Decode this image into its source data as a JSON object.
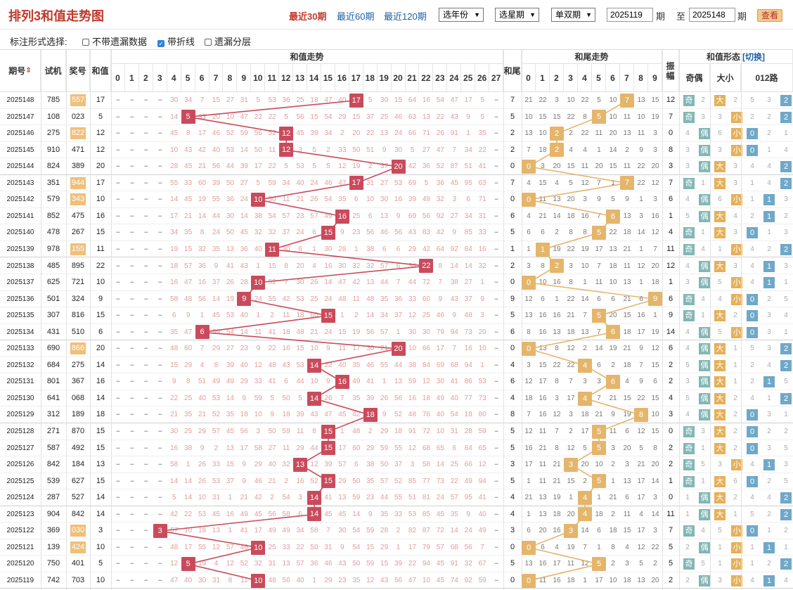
{
  "title": "排列3和值走势图",
  "links": [
    "最近30期",
    "最近60期",
    "最近120期"
  ],
  "selects": [
    "选年份",
    "选星期",
    "单双期"
  ],
  "range": {
    "from": "2025119",
    "period1": "期",
    "to_label": "至",
    "to": "2025148",
    "period2": "期",
    "query": "查看"
  },
  "options": {
    "label": "标注形式选择:",
    "items": [
      {
        "label": "不带遗漏数据",
        "checked": false
      },
      {
        "label": "带折线",
        "checked": true
      },
      {
        "label": "遗漏分层",
        "checked": false
      }
    ]
  },
  "headers": {
    "issue": "期号",
    "trial": "试机",
    "draw": "奖号",
    "sum": "和值",
    "sum_trend": "和值走势",
    "tail": "和尾",
    "tail_trend": "和尾走势",
    "amp": "振幅",
    "shape": "和值形态",
    "switch": "[切换]",
    "parity": "奇偶",
    "size": "大小",
    "route": "012路"
  },
  "sum_digits": [
    "0",
    "1",
    "2",
    "3",
    "4",
    "5",
    "6",
    "7",
    "8",
    "9",
    "10",
    "11",
    "12",
    "13",
    "14",
    "15",
    "16",
    "17",
    "18",
    "19",
    "20",
    "21",
    "22",
    "23",
    "24",
    "25",
    "26",
    "27"
  ],
  "tail_digits": [
    "0",
    "1",
    "2",
    "3",
    "4",
    "5",
    "6",
    "7",
    "8",
    "9"
  ],
  "colors": {
    "red": "#c94b5b",
    "orange": "#e4b56b",
    "sel_bg": "#f0bf7a"
  },
  "rows": [
    {
      "issue": "2025148",
      "trial": "785",
      "draw": "557",
      "dup": true,
      "sum": 17,
      "tail": 7,
      "amp": 12,
      "parity": "奇",
      "size": "大",
      "route": "2"
    },
    {
      "issue": "2025147",
      "trial": "108",
      "draw": "023",
      "dup": false,
      "sum": 5,
      "tail": 5,
      "amp": 7,
      "parity": "奇",
      "size": "小",
      "route": "2"
    },
    {
      "issue": "2025146",
      "trial": "275",
      "draw": "822",
      "dup": true,
      "sum": 12,
      "tail": 2,
      "amp": 0,
      "parity": "偶",
      "size": "小",
      "route": "0"
    },
    {
      "issue": "2025145",
      "trial": "910",
      "draw": "471",
      "dup": false,
      "sum": 12,
      "tail": 2,
      "amp": 8,
      "parity": "偶",
      "size": "小",
      "route": "0"
    },
    {
      "issue": "2025144",
      "trial": "824",
      "draw": "389",
      "dup": false,
      "sum": 20,
      "tail": 0,
      "amp": 3,
      "parity": "偶",
      "size": "大",
      "route": "2"
    },
    {
      "issue": "2025143",
      "trial": "351",
      "draw": "944",
      "dup": true,
      "sum": 17,
      "tail": 7,
      "amp": 7,
      "parity": "奇",
      "size": "大",
      "route": "2"
    },
    {
      "issue": "2025142",
      "trial": "579",
      "draw": "343",
      "dup": true,
      "sum": 10,
      "tail": 0,
      "amp": 6,
      "parity": "偶",
      "size": "小",
      "route": "1"
    },
    {
      "issue": "2025141",
      "trial": "852",
      "draw": "475",
      "dup": false,
      "sum": 16,
      "tail": 6,
      "amp": 1,
      "parity": "偶",
      "size": "大",
      "route": "1"
    },
    {
      "issue": "2025140",
      "trial": "478",
      "draw": "267",
      "dup": false,
      "sum": 15,
      "tail": 5,
      "amp": 4,
      "parity": "奇",
      "size": "大",
      "route": "0"
    },
    {
      "issue": "2025139",
      "trial": "978",
      "draw": "155",
      "dup": true,
      "sum": 11,
      "tail": 1,
      "amp": 11,
      "parity": "奇",
      "size": "小",
      "route": "2"
    },
    {
      "issue": "2025138",
      "trial": "485",
      "draw": "895",
      "dup": false,
      "sum": 22,
      "tail": 2,
      "amp": 12,
      "parity": "偶",
      "size": "大",
      "route": "1"
    },
    {
      "issue": "2025137",
      "trial": "625",
      "draw": "721",
      "dup": false,
      "sum": 10,
      "tail": 0,
      "amp": 1,
      "parity": "偶",
      "size": "小",
      "route": "1"
    },
    {
      "issue": "2025136",
      "trial": "501",
      "draw": "324",
      "dup": false,
      "sum": 9,
      "tail": 9,
      "amp": 6,
      "parity": "奇",
      "size": "小",
      "route": "0"
    },
    {
      "issue": "2025135",
      "trial": "307",
      "draw": "816",
      "dup": false,
      "sum": 15,
      "tail": 5,
      "amp": 9,
      "parity": "奇",
      "size": "大",
      "route": "0"
    },
    {
      "issue": "2025134",
      "trial": "431",
      "draw": "510",
      "dup": false,
      "sum": 6,
      "tail": 6,
      "amp": 14,
      "parity": "偶",
      "size": "小",
      "route": "0"
    },
    {
      "issue": "2025133",
      "trial": "690",
      "draw": "866",
      "dup": true,
      "sum": 20,
      "tail": 0,
      "amp": 6,
      "parity": "偶",
      "size": "大",
      "route": "2"
    },
    {
      "issue": "2025132",
      "trial": "684",
      "draw": "275",
      "dup": false,
      "sum": 14,
      "tail": 4,
      "amp": 2,
      "parity": "偶",
      "size": "大",
      "route": "2"
    },
    {
      "issue": "2025131",
      "trial": "801",
      "draw": "367",
      "dup": false,
      "sum": 16,
      "tail": 6,
      "amp": 2,
      "parity": "偶",
      "size": "大",
      "route": "1"
    },
    {
      "issue": "2025130",
      "trial": "641",
      "draw": "068",
      "dup": false,
      "sum": 14,
      "tail": 4,
      "amp": 4,
      "parity": "偶",
      "size": "大",
      "route": "2"
    },
    {
      "issue": "2025129",
      "trial": "312",
      "draw": "189",
      "dup": false,
      "sum": 18,
      "tail": 8,
      "amp": 3,
      "parity": "偶",
      "size": "大",
      "route": "0"
    },
    {
      "issue": "2025128",
      "trial": "271",
      "draw": "870",
      "dup": false,
      "sum": 15,
      "tail": 5,
      "amp": 0,
      "parity": "奇",
      "size": "大",
      "route": "0"
    },
    {
      "issue": "2025127",
      "trial": "587",
      "draw": "492",
      "dup": false,
      "sum": 15,
      "tail": 5,
      "amp": 2,
      "parity": "奇",
      "size": "大",
      "route": "0"
    },
    {
      "issue": "2025126",
      "trial": "842",
      "draw": "184",
      "dup": false,
      "sum": 13,
      "tail": 3,
      "amp": 2,
      "parity": "奇",
      "size": "小",
      "route": "1"
    },
    {
      "issue": "2025125",
      "trial": "539",
      "draw": "627",
      "dup": false,
      "sum": 15,
      "tail": 5,
      "amp": 1,
      "parity": "奇",
      "size": "大",
      "route": "0"
    },
    {
      "issue": "2025124",
      "trial": "287",
      "draw": "527",
      "dup": false,
      "sum": 14,
      "tail": 4,
      "amp": 0,
      "parity": "偶",
      "size": "大",
      "route": "2"
    },
    {
      "issue": "2025123",
      "trial": "904",
      "draw": "842",
      "dup": false,
      "sum": 14,
      "tail": 4,
      "amp": 11,
      "parity": "偶",
      "size": "大",
      "route": "2"
    },
    {
      "issue": "2025122",
      "trial": "369",
      "draw": "030",
      "dup": true,
      "sum": 3,
      "tail": 3,
      "amp": 7,
      "parity": "奇",
      "size": "小",
      "route": "0"
    },
    {
      "issue": "2025121",
      "trial": "139",
      "draw": "424",
      "dup": true,
      "sum": 10,
      "tail": 0,
      "amp": 5,
      "parity": "偶",
      "size": "小",
      "route": "1"
    },
    {
      "issue": "2025120",
      "trial": "750",
      "draw": "401",
      "dup": false,
      "sum": 5,
      "tail": 5,
      "amp": 5,
      "parity": "奇",
      "size": "小",
      "route": "2"
    },
    {
      "issue": "2025119",
      "trial": "742",
      "draw": "703",
      "dup": false,
      "sum": 10,
      "tail": 0,
      "amp": 2,
      "parity": "偶",
      "size": "小",
      "route": "1"
    }
  ]
}
